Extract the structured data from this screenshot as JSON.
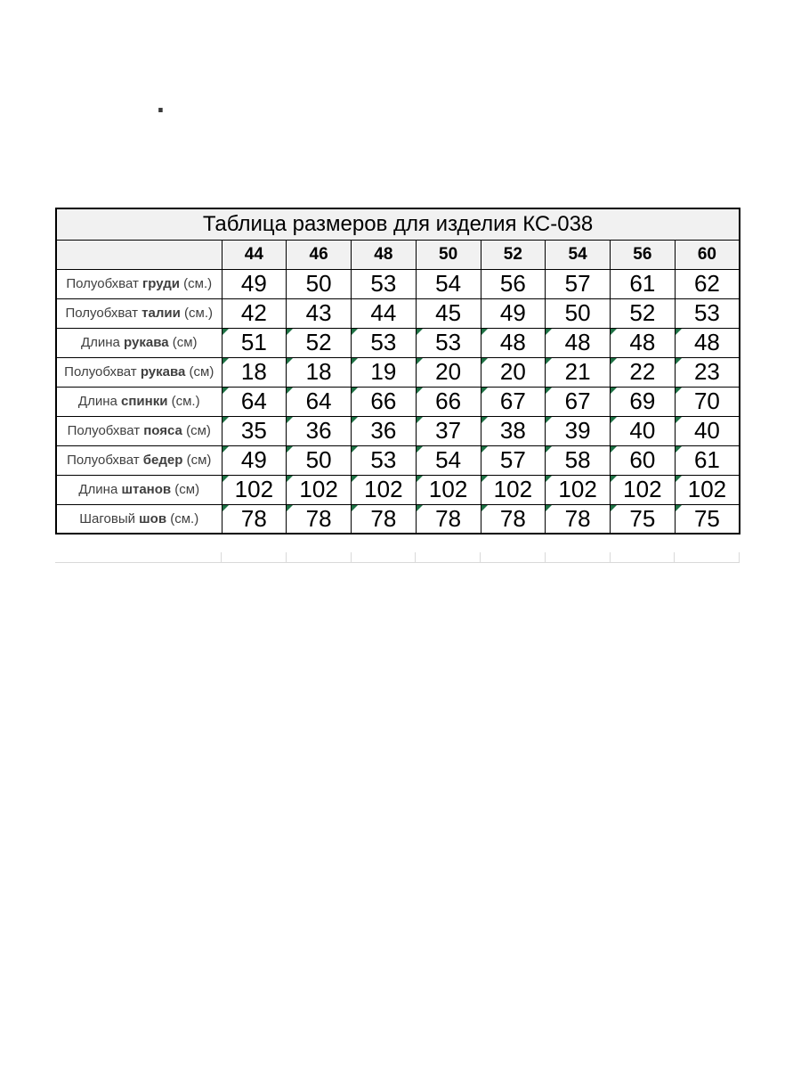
{
  "page": {
    "stray_mark": "."
  },
  "table": {
    "title": "Таблица размеров для изделия КС-038",
    "sizes": [
      "44",
      "46",
      "48",
      "50",
      "52",
      "54",
      "56",
      "60"
    ],
    "rows": [
      {
        "pre": "Полуобхват ",
        "bold": "груди",
        "post": " (см.)",
        "values": [
          "49",
          "50",
          "53",
          "54",
          "56",
          "57",
          "61",
          "62"
        ],
        "flag": false
      },
      {
        "pre": "Полуобхват ",
        "bold": "талии",
        "post": " (см.)",
        "values": [
          "42",
          "43",
          "44",
          "45",
          "49",
          "50",
          "52",
          "53"
        ],
        "flag": false
      },
      {
        "pre": "Длина ",
        "bold": "рукава",
        "post": " (см)",
        "values": [
          "51",
          "52",
          "53",
          "53",
          "48",
          "48",
          "48",
          "48"
        ],
        "flag": true
      },
      {
        "pre": "Полуобхват ",
        "bold": "рукава",
        "post": " (см)",
        "values": [
          "18",
          "18",
          "19",
          "20",
          "20",
          "21",
          "22",
          "23"
        ],
        "flag": true
      },
      {
        "pre": "Длина ",
        "bold": "спинки",
        "post": "  (см.)",
        "values": [
          "64",
          "64",
          "66",
          "66",
          "67",
          "67",
          "69",
          "70"
        ],
        "flag": true
      },
      {
        "pre": "Полуобхват ",
        "bold": "пояса",
        "post": " (см)",
        "values": [
          "35",
          "36",
          "36",
          "37",
          "38",
          "39",
          "40",
          "40"
        ],
        "flag": true
      },
      {
        "pre": "Полуобхват ",
        "bold": "бедер",
        "post": " (см)",
        "values": [
          "49",
          "50",
          "53",
          "54",
          "57",
          "58",
          "60",
          "61"
        ],
        "flag": true
      },
      {
        "pre": "Длина ",
        "bold": "штанов",
        "post": " (см)",
        "values": [
          "102",
          "102",
          "102",
          "102",
          "102",
          "102",
          "102",
          "102"
        ],
        "flag": true
      },
      {
        "pre": "Шаговый ",
        "bold": "шов",
        "post": " (см.)",
        "values": [
          "78",
          "78",
          "78",
          "78",
          "78",
          "78",
          "75",
          "75"
        ],
        "flag": true
      }
    ],
    "colors": {
      "header_bg": "#f1f1f1",
      "border": "#000000",
      "flag_green": "#1f7145",
      "label_text": "#3f3f3f"
    },
    "layout": {
      "label_col_width": 186,
      "size_col_width": 72.75,
      "num_size_cols": 8
    }
  }
}
